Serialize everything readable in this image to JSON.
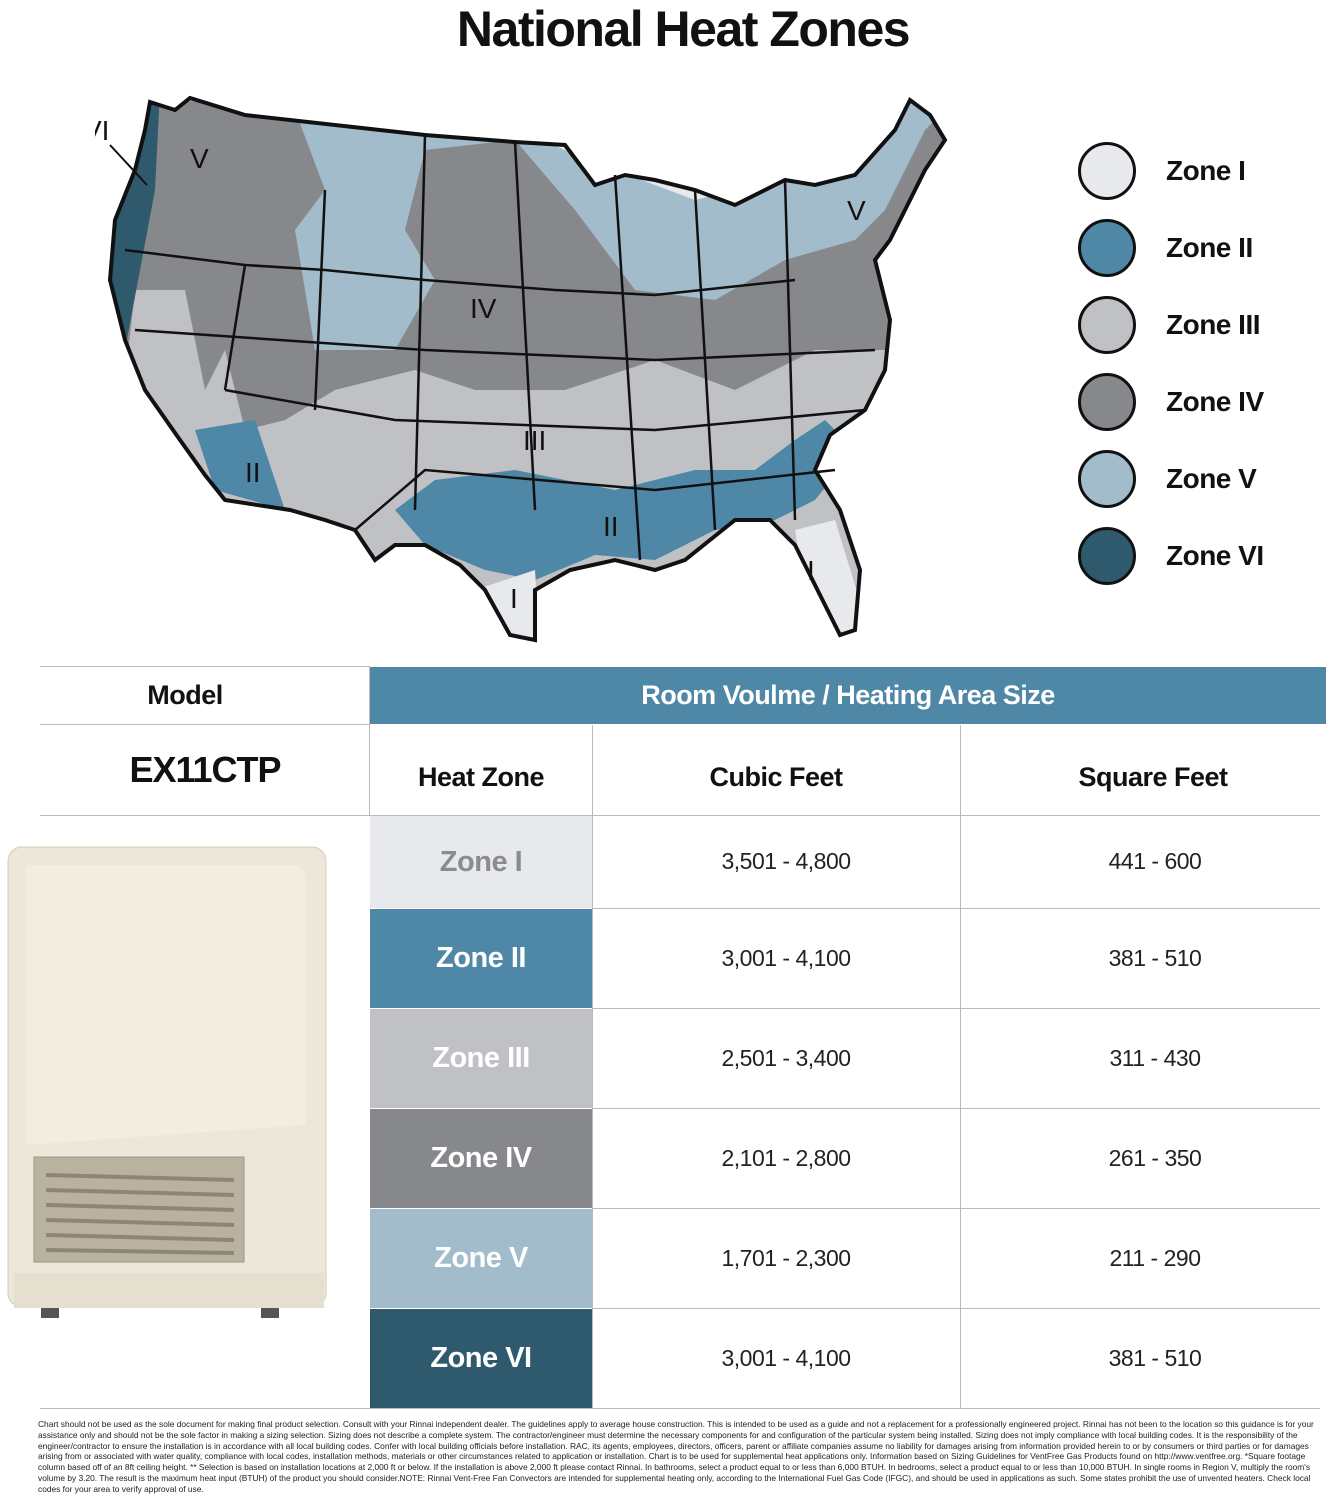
{
  "title": "National Heat Zones",
  "map": {
    "labels": [
      "VI",
      "V",
      "IV",
      "III",
      "II",
      "II",
      "I",
      "I",
      "V"
    ]
  },
  "legend": [
    {
      "label": "Zone I",
      "color": "#e8e9ec"
    },
    {
      "label": "Zone II",
      "color": "#4e88a6"
    },
    {
      "label": "Zone III",
      "color": "#c0c1c5"
    },
    {
      "label": "Zone IV",
      "color": "#86888c"
    },
    {
      "label": "Zone V",
      "color": "#a3bccb"
    },
    {
      "label": "Zone VI",
      "color": "#2f5a6e"
    }
  ],
  "table": {
    "model_header": "Model",
    "span_header": "Room Voulme / Heating Area Size",
    "model": "EX11CTP",
    "col_headers": [
      "Heat Zone",
      "Cubic Feet",
      "Square Feet"
    ],
    "header_color": "#4e88a6",
    "rows": [
      {
        "zone": "Zone I",
        "cubic": "3,501 - 4,800",
        "square": "441 - 600",
        "color": "#e8e9ec",
        "text": "#8a8b8f"
      },
      {
        "zone": "Zone II",
        "cubic": "3,001 - 4,100",
        "square": "381 - 510",
        "color": "#4e88a6",
        "text": "#ffffff"
      },
      {
        "zone": "Zone III",
        "cubic": "2,501 - 3,400",
        "square": "311 - 430",
        "color": "#c0c1c5",
        "text": "#ffffff"
      },
      {
        "zone": "Zone IV",
        "cubic": "2,101 - 2,800",
        "square": "261 - 350",
        "color": "#86888c",
        "text": "#ffffff"
      },
      {
        "zone": "Zone V",
        "cubic": "1,701 - 2,300",
        "square": "211 - 290",
        "color": "#a3bccb",
        "text": "#ffffff"
      },
      {
        "zone": "Zone VI",
        "cubic": "3,001 - 4,100",
        "square": "381 - 510",
        "color": "#2f5a6e",
        "text": "#ffffff"
      }
    ]
  },
  "footnote": "Chart should not be used as the sole document for making final product selection. Consult with your Rinnai independent dealer. The guidelines apply to average house construction. This is intended to be used as a guide and not a replacement for a professionally engineered project. Rinnai has not been to the location so this guidance is for your assistance only and should not be the sole factor in making a sizing selection. Sizing does not describe a complete system. The contractor/engineer must determine the necessary components for and configuration of the particular system being installed. Sizing does not imply compliance with local building codes. It is the responsibility of the engineer/contractor to ensure the installation is in accordance with all local building codes. Confer with local building officials before installation. RAC, its agents, employees, directors, officers, parent or affiliate companies assume no liability for damages arising from information provided herein to or by consumers or third parties or for damages arising from or associated with water quality, compliance with local codes, installation methods, materials or other circumstances related to application or installation. Chart is to be used for supplemental heat applications only. Information based on Sizing Guidelines for VentFree Gas Products found on http://www.ventfree.org. *Square footage column based off of an 8ft ceiling height. ** Selection is based on installation locations at 2,000 ft or below. If the installation is above 2,000 ft please contact Rinnai. In bathrooms, select a product equal to or less than 6,000 BTUH. In bedrooms, select a product equal to or less than 10,000 BTUH. In single rooms in Region V, multiply the room's volume by 3.20. The result is the maximum heat input (BTUH) of the product you should consider.NOTE: Rinnai Vent-Free Fan Convectors are intended for supplemental heating only, according to the International Fuel Gas Code (IFGC), and should be used in applications as such. Some states prohibit the use of unvented heaters. Check local codes for your area to verify approval of use."
}
